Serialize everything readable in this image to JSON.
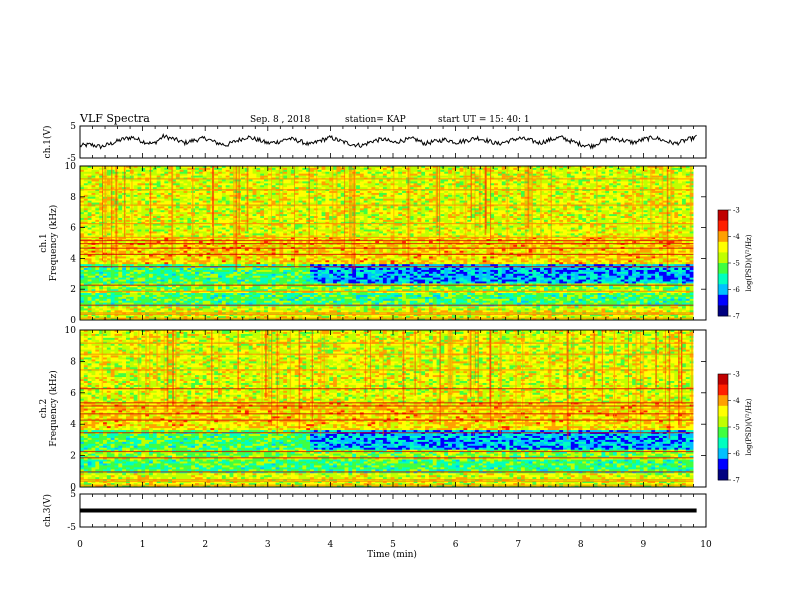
{
  "header": {
    "title": "VLF Spectra",
    "date": "Sep. 8 , 2018",
    "station": "station= KAP",
    "start": "start  UT =  15: 40: 1"
  },
  "colors": {
    "background": "#ffffff",
    "axis": "#000000",
    "trace": "#000000",
    "colormap": [
      "#000080",
      "#0000ff",
      "#00c0ff",
      "#00ffc0",
      "#40ff40",
      "#c0ff00",
      "#ffff00",
      "#ffa000",
      "#ff2000",
      "#c00000"
    ]
  },
  "chart_data": [
    {
      "type": "line",
      "panel": "ch1-waveform",
      "ylabel": "ch.1(V)",
      "ylim": [
        -5,
        5
      ],
      "yticks": [
        "5",
        "-5"
      ],
      "xlim": [
        0,
        10
      ],
      "series": [
        {
          "values_note": "",
          "values": [
            -1.2,
            -0.8,
            -1.5,
            -0.5,
            0.8,
            1.5,
            0.2,
            -0.6,
            1.8,
            0.9,
            -0.3,
            0.6,
            1.2,
            -0.2,
            -1.0,
            0.4,
            1.6,
            0.7,
            -0.4,
            0.1,
            1.1,
            0.3,
            -0.9,
            0.5,
            1.4,
            0.2,
            -0.7,
            -1.1,
            0.3,
            0.9,
            -0.2,
            0.6,
            1.0,
            -0.5,
            0.2,
            0.8,
            -0.1,
            0.5,
            1.3,
            0.4,
            -0.6,
            0.3,
            1.2,
            0.6,
            -0.3,
            0.7,
            1.5,
            0.2,
            -0.8,
            -1.3,
            0.4,
            1.1,
            0.5,
            -0.2,
            0.9,
            1.4,
            0.3,
            -0.5,
            0.6,
            1.6
          ]
        }
      ]
    },
    {
      "type": "heatmap",
      "panel": "ch1-spectrogram",
      "ylabel_line1": "ch.1",
      "ylabel_line2": "Frequency (kHz)",
      "ylim": [
        0,
        10
      ],
      "yticks": [
        "0",
        "2",
        "4",
        "6",
        "8",
        "10"
      ],
      "xlim": [
        0,
        9.8
      ],
      "zlim": [
        -7,
        -3
      ],
      "colorbar_label": "log(PSD)(V²/Hz)",
      "colorbar_ticks": [
        "-3",
        "-4",
        "-5",
        "-6",
        "-7"
      ]
    },
    {
      "type": "heatmap",
      "panel": "ch2-spectrogram",
      "ylabel_line1": "ch.2",
      "ylabel_line2": "Frequency (kHz)",
      "ylim": [
        0,
        10
      ],
      "yticks": [
        "0",
        "2",
        "4",
        "6",
        "8",
        "10"
      ],
      "xlim": [
        0,
        9.8
      ],
      "zlim": [
        -7,
        -3
      ],
      "colorbar_label": "log(PSD)(V²/Hz)",
      "colorbar_ticks": [
        "-3",
        "-4",
        "-5",
        "-6",
        "-7"
      ]
    },
    {
      "type": "line",
      "panel": "ch3-waveform",
      "ylabel": "ch.3(V)",
      "ylim": [
        -5,
        5
      ],
      "yticks": [
        "5",
        "-5"
      ],
      "xlim": [
        0,
        10
      ],
      "series": [
        {
          "values": [
            0,
            0
          ]
        }
      ]
    }
  ],
  "xaxis": {
    "label": "Time (min)",
    "ticks": [
      "0",
      "1",
      "2",
      "3",
      "4",
      "5",
      "6",
      "7",
      "8",
      "9",
      "10"
    ]
  }
}
